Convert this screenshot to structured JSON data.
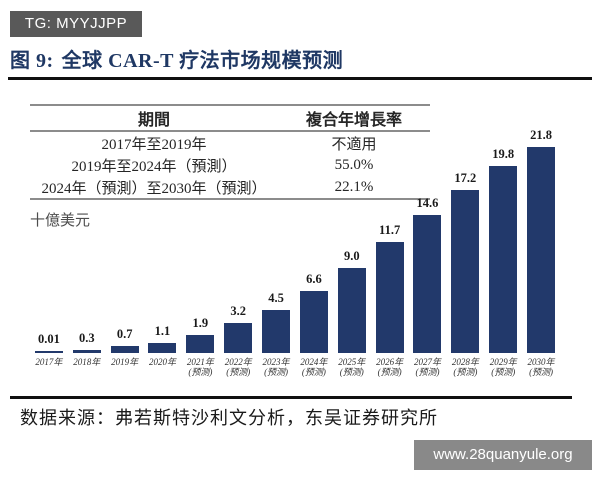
{
  "tg_badge": "TG: MYYJJPP",
  "figure": {
    "label": "图 9:",
    "title": "全球 CAR-T 疗法市场规模预测"
  },
  "cagr_table": {
    "headers": [
      "期間",
      "複合年增長率"
    ],
    "rows": [
      [
        "2017年至2019年",
        "不適用"
      ],
      [
        "2019年至2024年（預測）",
        "55.0%"
      ],
      [
        "2024年（預測）至2030年（預測）",
        "22.1%"
      ]
    ]
  },
  "unit_label": "十億美元",
  "chart_data": {
    "type": "bar",
    "title": "全球 CAR-T 疗法市场规模预测",
    "ylabel": "十億美元",
    "ylim": [
      0,
      21.8
    ],
    "grid": false,
    "legend": "none",
    "bar_color": "#22396b",
    "categories": [
      {
        "year": "2017年",
        "note": ""
      },
      {
        "year": "2018年",
        "note": ""
      },
      {
        "year": "2019年",
        "note": ""
      },
      {
        "year": "2020年",
        "note": ""
      },
      {
        "year": "2021年",
        "note": "(预测)"
      },
      {
        "year": "2022年",
        "note": "(预测)"
      },
      {
        "year": "2023年",
        "note": "(预测)"
      },
      {
        "year": "2024年",
        "note": "(预测)"
      },
      {
        "year": "2025年",
        "note": "(预测)"
      },
      {
        "year": "2026年",
        "note": "(预测)"
      },
      {
        "year": "2027年",
        "note": "(预测)"
      },
      {
        "year": "2028年",
        "note": "(预测)"
      },
      {
        "year": "2029年",
        "note": "(预测)"
      },
      {
        "year": "2030年",
        "note": "(预测)"
      }
    ],
    "values": [
      0.01,
      0.3,
      0.7,
      1.1,
      1.9,
      3.2,
      4.5,
      6.6,
      9.0,
      11.7,
      14.6,
      17.2,
      19.8,
      21.8
    ],
    "value_labels": [
      "0.01",
      "0.3",
      "0.7",
      "1.1",
      "1.9",
      "3.2",
      "4.5",
      "6.6",
      "9.0",
      "11.7",
      "14.6",
      "17.2",
      "19.8",
      "21.8"
    ]
  },
  "source": "数据来源：弗若斯特沙利文分析，东吴证券研究所",
  "watermark": "www.28quanyule.org",
  "colors": {
    "bar": "#22396b",
    "title": "#1f3864",
    "tg_badge_bg": "#595959",
    "watermark_bg": "#898989",
    "rule": "#101010",
    "table_line": "#8c8c8c"
  }
}
